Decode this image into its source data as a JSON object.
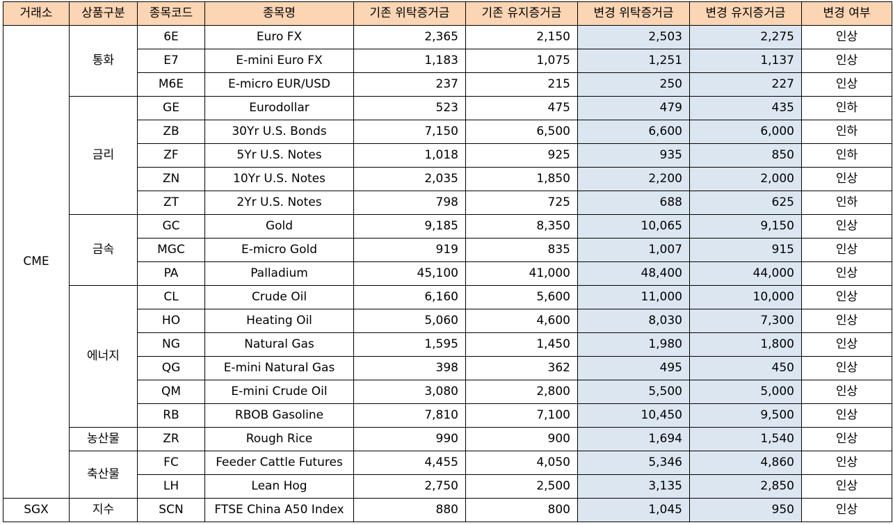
{
  "headers": [
    "거래소",
    "상품구분",
    "종목코드",
    "종목명",
    "기존 위탁증거금",
    "기존 유지증거금",
    "변경 위탁증거금",
    "변경 유지증거금",
    "변경 여부"
  ],
  "exchanges": [
    "CME",
    "SGX"
  ],
  "categories": [
    "통화",
    "금리",
    "금속",
    "에너지",
    "농산물",
    "축산물",
    "지수"
  ],
  "rows": [
    {
      "code": "6E",
      "name": "Euro FX",
      "old_initial": "2,365",
      "old_maint": "2,150",
      "new_initial": "2,503",
      "new_maint": "2,275",
      "change": "인상"
    },
    {
      "code": "E7",
      "name": "E-mini Euro FX",
      "old_initial": "1,183",
      "old_maint": "1,075",
      "new_initial": "1,251",
      "new_maint": "1,137",
      "change": "인상"
    },
    {
      "code": "M6E",
      "name": "E-micro EUR/USD",
      "old_initial": "237",
      "old_maint": "215",
      "new_initial": "250",
      "new_maint": "227",
      "change": "인상"
    },
    {
      "code": "GE",
      "name": "Eurodollar",
      "old_initial": "523",
      "old_maint": "475",
      "new_initial": "479",
      "new_maint": "435",
      "change": "인하"
    },
    {
      "code": "ZB",
      "name": "30Yr U.S. Bonds",
      "old_initial": "7,150",
      "old_maint": "6,500",
      "new_initial": "6,600",
      "new_maint": "6,000",
      "change": "인하"
    },
    {
      "code": "ZF",
      "name": "5Yr U.S. Notes",
      "old_initial": "1,018",
      "old_maint": "925",
      "new_initial": "935",
      "new_maint": "850",
      "change": "인하"
    },
    {
      "code": "ZN",
      "name": "10Yr U.S. Notes",
      "old_initial": "2,035",
      "old_maint": "1,850",
      "new_initial": "2,200",
      "new_maint": "2,000",
      "change": "인상"
    },
    {
      "code": "ZT",
      "name": "2Yr U.S. Notes",
      "old_initial": "798",
      "old_maint": "725",
      "new_initial": "688",
      "new_maint": "625",
      "change": "인하"
    },
    {
      "code": "GC",
      "name": "Gold",
      "old_initial": "9,185",
      "old_maint": "8,350",
      "new_initial": "10,065",
      "new_maint": "9,150",
      "change": "인상"
    },
    {
      "code": "MGC",
      "name": "E-micro Gold",
      "old_initial": "919",
      "old_maint": "835",
      "new_initial": "1,007",
      "new_maint": "915",
      "change": "인상"
    },
    {
      "code": "PA",
      "name": "Palladium",
      "old_initial": "45,100",
      "old_maint": "41,000",
      "new_initial": "48,400",
      "new_maint": "44,000",
      "change": "인상"
    },
    {
      "code": "CL",
      "name": "Crude Oil",
      "old_initial": "6,160",
      "old_maint": "5,600",
      "new_initial": "11,000",
      "new_maint": "10,000",
      "change": "인상"
    },
    {
      "code": "HO",
      "name": "Heating Oil",
      "old_initial": "5,060",
      "old_maint": "4,600",
      "new_initial": "8,030",
      "new_maint": "7,300",
      "change": "인상"
    },
    {
      "code": "NG",
      "name": "Natural Gas",
      "old_initial": "1,595",
      "old_maint": "1,450",
      "new_initial": "1,980",
      "new_maint": "1,800",
      "change": "인상"
    },
    {
      "code": "QG",
      "name": "E-mini Natural Gas",
      "old_initial": "398",
      "old_maint": "362",
      "new_initial": "495",
      "new_maint": "450",
      "change": "인상"
    },
    {
      "code": "QM",
      "name": "E-mini Crude Oil",
      "old_initial": "3,080",
      "old_maint": "2,800",
      "new_initial": "5,500",
      "new_maint": "5,000",
      "change": "인상"
    },
    {
      "code": "RB",
      "name": "RBOB Gasoline",
      "old_initial": "7,810",
      "old_maint": "7,100",
      "new_initial": "10,450",
      "new_maint": "9,500",
      "change": "인상"
    },
    {
      "code": "ZR",
      "name": "Rough Rice",
      "old_initial": "990",
      "old_maint": "900",
      "new_initial": "1,694",
      "new_maint": "1,540",
      "change": "인상"
    },
    {
      "code": "FC",
      "name": "Feeder Cattle Futures",
      "old_initial": "4,455",
      "old_maint": "4,050",
      "new_initial": "5,346",
      "new_maint": "4,860",
      "change": "인상"
    },
    {
      "code": "LH",
      "name": "Lean Hog",
      "old_initial": "2,750",
      "old_maint": "2,500",
      "new_initial": "3,135",
      "new_maint": "2,850",
      "change": "인상"
    },
    {
      "code": "SCN",
      "name": "FTSE China A50 Index",
      "old_initial": "880",
      "old_maint": "800",
      "new_initial": "1,045",
      "new_maint": "950",
      "change": "인상"
    }
  ]
}
